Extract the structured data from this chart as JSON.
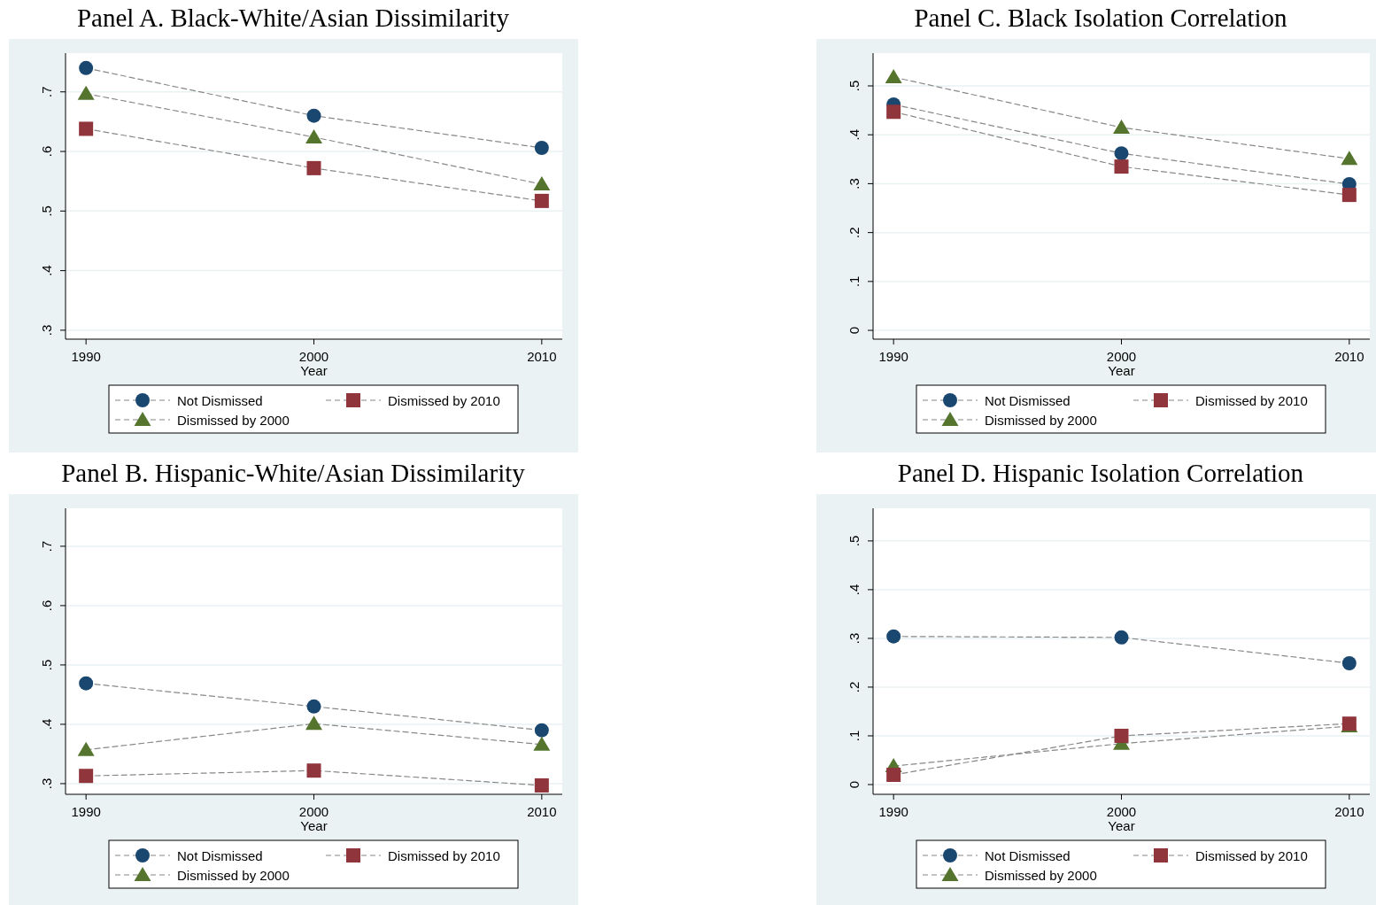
{
  "chart_data": [
    {
      "type": "line",
      "title": "Panel A. Black-White/Asian Dissimilarity",
      "xlabel": "Year",
      "x": [
        1990,
        2000,
        2010
      ],
      "xlim": [
        1989.1,
        2010.9
      ],
      "xticks": [
        1990,
        2000,
        2010
      ],
      "ylim": [
        0.285,
        0.765
      ],
      "yticks": [
        {
          "value": 0.3,
          "label": ".3"
        },
        {
          "value": 0.4,
          "label": ".4"
        },
        {
          "value": 0.5,
          "label": ".5"
        },
        {
          "value": 0.6,
          "label": ".6"
        },
        {
          "value": 0.7,
          "label": ".7"
        }
      ],
      "grid": "y",
      "legend": "bottom",
      "line_style": "dashed",
      "series": [
        {
          "name": "Not Dismissed",
          "color": "#1a476f",
          "marker": "circle",
          "values": [
            0.74,
            0.66,
            0.606
          ]
        },
        {
          "name": "Dismissed by 2000",
          "color": "#55752f",
          "marker": "triangle",
          "values": [
            0.697,
            0.624,
            0.545
          ]
        },
        {
          "name": "Dismissed by 2010",
          "color": "#90353b",
          "marker": "square",
          "values": [
            0.638,
            0.572,
            0.517
          ]
        }
      ]
    },
    {
      "type": "line",
      "title": "Panel C. Black Isolation Correlation",
      "xlabel": "Year",
      "x": [
        1990,
        2000,
        2010
      ],
      "xlim": [
        1989.1,
        2010.9
      ],
      "xticks": [
        1990,
        2000,
        2010
      ],
      "ylim": [
        -0.018,
        0.567
      ],
      "yticks": [
        0,
        {
          "value": 0.1,
          "label": ".1"
        },
        {
          "value": 0.2,
          "label": ".2"
        },
        {
          "value": 0.3,
          "label": ".3"
        },
        {
          "value": 0.4,
          "label": ".4"
        },
        {
          "value": 0.5,
          "label": ".5"
        }
      ],
      "grid": "y",
      "legend": "bottom",
      "line_style": "dashed",
      "series": [
        {
          "name": "Not Dismissed",
          "color": "#1a476f",
          "marker": "circle",
          "values": [
            0.462,
            0.362,
            0.299
          ]
        },
        {
          "name": "Dismissed by 2000",
          "color": "#55752f",
          "marker": "triangle",
          "values": [
            0.518,
            0.415,
            0.351
          ]
        },
        {
          "name": "Dismissed by 2010",
          "color": "#90353b",
          "marker": "square",
          "values": [
            0.447,
            0.335,
            0.277
          ]
        }
      ]
    },
    {
      "type": "line",
      "title": "Panel B. Hispanic-White/Asian Dissimilarity",
      "xlabel": "Year",
      "x": [
        1990,
        2000,
        2010
      ],
      "xlim": [
        1989.1,
        2010.9
      ],
      "xticks": [
        1990,
        2000,
        2010
      ],
      "ylim": [
        0.282,
        0.764
      ],
      "yticks": [
        {
          "value": 0.3,
          "label": ".3"
        },
        {
          "value": 0.4,
          "label": ".4"
        },
        {
          "value": 0.5,
          "label": ".5"
        },
        {
          "value": 0.6,
          "label": ".6"
        },
        {
          "value": 0.7,
          "label": ".7"
        }
      ],
      "grid": "y",
      "legend": "bottom",
      "line_style": "dashed",
      "series": [
        {
          "name": "Not Dismissed",
          "color": "#1a476f",
          "marker": "circle",
          "values": [
            0.469,
            0.43,
            0.39
          ]
        },
        {
          "name": "Dismissed by 2000",
          "color": "#55752f",
          "marker": "triangle",
          "values": [
            0.357,
            0.401,
            0.366
          ]
        },
        {
          "name": "Dismissed by 2010",
          "color": "#90353b",
          "marker": "square",
          "values": [
            0.313,
            0.322,
            0.297
          ]
        }
      ]
    },
    {
      "type": "line",
      "title": "Panel D. Hispanic Isolation Correlation",
      "xlabel": "Year",
      "x": [
        1990,
        2000,
        2010
      ],
      "xlim": [
        1989.1,
        2010.9
      ],
      "xticks": [
        1990,
        2000,
        2010
      ],
      "ylim": [
        -0.02,
        0.567
      ],
      "yticks": [
        0,
        {
          "value": 0.1,
          "label": ".1"
        },
        {
          "value": 0.2,
          "label": ".2"
        },
        {
          "value": 0.3,
          "label": ".3"
        },
        {
          "value": 0.4,
          "label": ".4"
        },
        {
          "value": 0.5,
          "label": ".5"
        }
      ],
      "grid": "y",
      "legend": "bottom",
      "line_style": "dashed",
      "series": [
        {
          "name": "Not Dismissed",
          "color": "#1a476f",
          "marker": "circle",
          "values": [
            0.304,
            0.302,
            0.249
          ]
        },
        {
          "name": "Dismissed by 2000",
          "color": "#55752f",
          "marker": "triangle",
          "values": [
            0.038,
            0.084,
            0.12
          ]
        },
        {
          "name": "Dismissed by 2010",
          "color": "#90353b",
          "marker": "square",
          "values": [
            0.02,
            0.1,
            0.125
          ]
        }
      ]
    }
  ]
}
